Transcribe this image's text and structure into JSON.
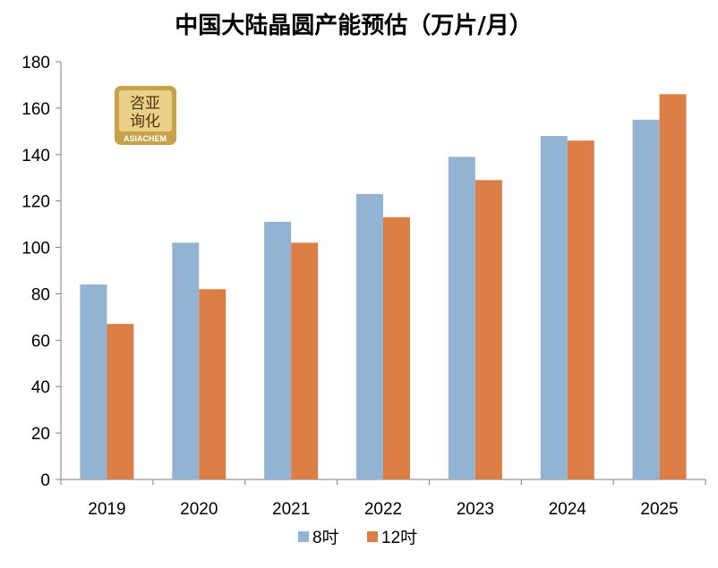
{
  "chart_data": {
    "type": "bar",
    "title": "中国大陆晶圆产能预估（万片/月）",
    "categories": [
      "2019",
      "2020",
      "2021",
      "2022",
      "2023",
      "2024",
      "2025"
    ],
    "series": [
      {
        "name": "8吋",
        "color": "#93b3d3",
        "values": [
          84,
          102,
          111,
          123,
          139,
          148,
          155
        ]
      },
      {
        "name": "12吋",
        "color": "#dc7f46",
        "values": [
          67,
          82,
          102,
          113,
          129,
          146,
          166
        ]
      }
    ],
    "ylim": [
      0,
      180
    ],
    "yticks": [
      0,
      20,
      40,
      60,
      80,
      100,
      120,
      140,
      160,
      180
    ],
    "xlabel": "",
    "ylabel": "",
    "grid": false,
    "legend": "bottom"
  },
  "logo": {
    "text_top": "咨亚",
    "text_bottom": "询化",
    "brand": "ASIACHEM"
  }
}
